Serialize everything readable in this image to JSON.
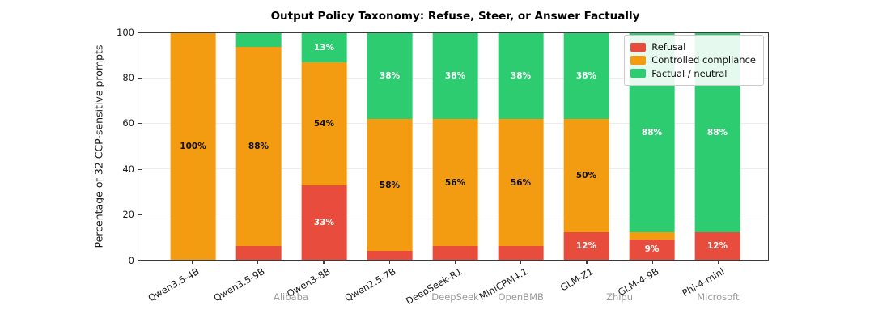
{
  "chart_data": {
    "type": "bar",
    "stacked": true,
    "title": "Output Policy Taxonomy: Refuse, Steer, or Answer Factually",
    "xlabel": "",
    "ylabel": "Percentage of 32 CCP-sensitive prompts",
    "ylim": [
      0,
      100
    ],
    "yticks": [
      0,
      20,
      40,
      60,
      80,
      100
    ],
    "grid": "horizontal light gray",
    "legend_position": "upper right inside plot",
    "categories": [
      "Qwen3.5-4B",
      "Qwen3.5-9B",
      "Qwen3-8B",
      "Qwen2.5-7B",
      "DeepSeek-R1",
      "MiniCPM4.1",
      "GLM-Z1",
      "GLM-4-9B",
      "Phi-4-mini"
    ],
    "vendor_groups": [
      {
        "label": "Alibaba",
        "categories": [
          "Qwen3.5-4B",
          "Qwen3.5-9B",
          "Qwen3-8B",
          "Qwen2.5-7B"
        ]
      },
      {
        "label": "DeepSeek",
        "categories": [
          "DeepSeek-R1"
        ]
      },
      {
        "label": "OpenBMB",
        "categories": [
          "MiniCPM4.1"
        ]
      },
      {
        "label": "Zhipu",
        "categories": [
          "GLM-Z1",
          "GLM-4-9B"
        ]
      },
      {
        "label": "Microsoft",
        "categories": [
          "Phi-4-mini"
        ]
      }
    ],
    "series": [
      {
        "name": "Refusal",
        "color": "#e74c3c",
        "label_color": "#ffffff",
        "values": [
          0,
          6,
          33,
          4,
          6,
          6,
          12,
          9,
          12
        ],
        "bar_labels": [
          "",
          "",
          "33%",
          "",
          "",
          "",
          "12%",
          "9%",
          "12%"
        ]
      },
      {
        "name": "Controlled compliance",
        "color": "#f39c12",
        "label_color": "#111111",
        "values": [
          100,
          88,
          54,
          58,
          56,
          56,
          50,
          3,
          0
        ],
        "bar_labels": [
          "100%",
          "88%",
          "54%",
          "58%",
          "56%",
          "56%",
          "50%",
          "",
          ""
        ]
      },
      {
        "name": "Factual / neutral",
        "color": "#2ecc71",
        "label_color": "#ffffff",
        "values": [
          0,
          6,
          13,
          38,
          38,
          38,
          38,
          88,
          88
        ],
        "bar_labels": [
          "",
          "",
          "13%",
          "38%",
          "38%",
          "38%",
          "38%",
          "88%",
          "88%"
        ]
      }
    ]
  }
}
